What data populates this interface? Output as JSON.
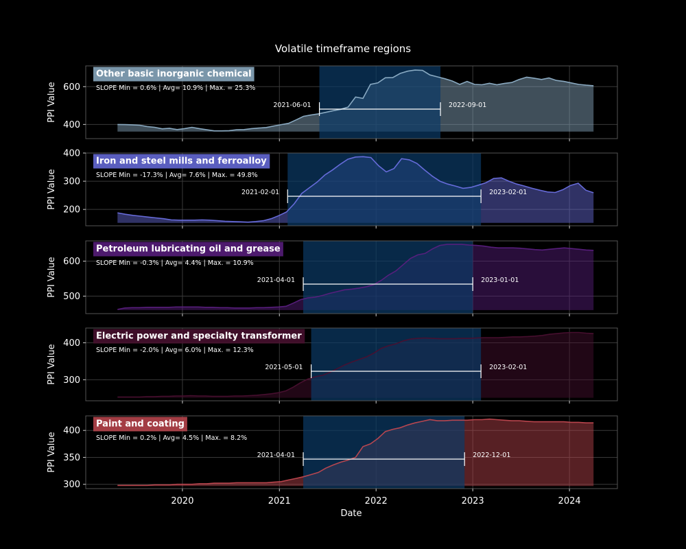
{
  "chart_data": {
    "type": "area",
    "title": "Volatile timeframe regions",
    "xlabel": "Date",
    "ylabel": "PPI Value",
    "x_ticks": [
      "2020",
      "2021",
      "2022",
      "2023",
      "2024"
    ],
    "x_range": [
      "2019-01-01",
      "2024-06-30"
    ],
    "grid": true,
    "colors": {
      "background": "#000000",
      "grid": "#3a3a3a",
      "frame": "#555555",
      "text": "#ffffff",
      "volatile_region": "#0b3a66"
    },
    "series": [
      {
        "name": "Other basic inorganic chemical",
        "stats": "SLOPE Min = 0.6% | Avg= 10.9% | Max. = 25.3%",
        "color": "#8fb0c8",
        "ylim": [
          325,
          710
        ],
        "yticks": [
          400,
          600
        ],
        "volatile_start": "2021-06-01",
        "volatile_end": "2022-09-01",
        "values": [
          400,
          399,
          398,
          396,
          389,
          385,
          377,
          380,
          373,
          378,
          385,
          378,
          372,
          366,
          366,
          367,
          372,
          373,
          378,
          381,
          384,
          392,
          399,
          406,
          424,
          443,
          450,
          456,
          464,
          473,
          480,
          492,
          545,
          538,
          612,
          620,
          647,
          648,
          670,
          682,
          688,
          686,
          662,
          652,
          642,
          630,
          612,
          628,
          612,
          610,
          618,
          610,
          617,
          622,
          638,
          650,
          645,
          638,
          646,
          633,
          628,
          620,
          612,
          608,
          605
        ]
      },
      {
        "name": "Iron and steel mills and ferroalloy",
        "stats": "SLOPE Min = -17.3% | Avg= 7.6% | Max. = 49.8%",
        "color": "#6a6fe0",
        "ylim": [
          142,
          400
        ],
        "yticks": [
          200,
          300,
          400
        ],
        "volatile_start": "2021-02-01",
        "volatile_end": "2023-02-01",
        "values": [
          188,
          183,
          179,
          176,
          173,
          170,
          167,
          163,
          162,
          162,
          162,
          163,
          162,
          160,
          158,
          157,
          156,
          155,
          157,
          160,
          167,
          178,
          191,
          220,
          257,
          277,
          297,
          322,
          340,
          360,
          378,
          386,
          387,
          384,
          355,
          333,
          345,
          380,
          376,
          363,
          340,
          318,
          300,
          290,
          283,
          275,
          278,
          286,
          295,
          310,
          312,
          300,
          290,
          283,
          275,
          268,
          262,
          260,
          270,
          285,
          293,
          268,
          259
        ]
      },
      {
        "name": "Petroleum lubricating oil and grease",
        "stats": "SLOPE Min = -0.3% | Avg= 4.4% | Max. = 10.9%",
        "color": "#5a1f80",
        "ylim": [
          450,
          658
        ],
        "yticks": [
          500,
          600
        ],
        "volatile_start": "2021-04-01",
        "volatile_end": "2023-01-01",
        "values": [
          462,
          466,
          467,
          467,
          468,
          468,
          468,
          468,
          469,
          469,
          469,
          469,
          468,
          468,
          467,
          467,
          466,
          466,
          466,
          467,
          467,
          468,
          469,
          471,
          480,
          490,
          495,
          497,
          502,
          508,
          513,
          518,
          520,
          523,
          527,
          533,
          545,
          560,
          572,
          590,
          608,
          618,
          622,
          635,
          645,
          648,
          648,
          648,
          646,
          645,
          643,
          640,
          638,
          638,
          638,
          637,
          635,
          633,
          632,
          634,
          636,
          638,
          636,
          634,
          632,
          631
        ]
      },
      {
        "name": "Electric power and specialty transformer",
        "stats": "SLOPE Min = -2.0% | Avg= 6.0% | Max. = 12.3%",
        "color": "#4a1030",
        "ylim": [
          243,
          440
        ],
        "yticks": [
          300,
          400
        ],
        "volatile_start": "2021-05-01",
        "volatile_end": "2023-02-01",
        "values": [
          253,
          253,
          253,
          253,
          254,
          254,
          255,
          255,
          256,
          256,
          257,
          256,
          256,
          255,
          255,
          255,
          256,
          256,
          257,
          258,
          260,
          262,
          265,
          270,
          280,
          292,
          302,
          308,
          312,
          320,
          330,
          340,
          348,
          355,
          362,
          372,
          385,
          392,
          397,
          405,
          410,
          412,
          413,
          412,
          411,
          411,
          411,
          412,
          412,
          413,
          414,
          414,
          414,
          415,
          416,
          416,
          417,
          418,
          420,
          423,
          425,
          427,
          428,
          428,
          426,
          425
        ]
      },
      {
        "name": "Paint and coating",
        "stats": "SLOPE Min = 0.2% | Avg= 4.5% | Max. = 8.2%",
        "color": "#c04850",
        "ylim": [
          292,
          427
        ],
        "yticks": [
          300,
          350,
          400
        ],
        "volatile_start": "2021-04-01",
        "volatile_end": "2022-12-01",
        "values": [
          298,
          298,
          298,
          298,
          298,
          299,
          299,
          299,
          300,
          300,
          300,
          301,
          301,
          302,
          302,
          302,
          303,
          303,
          303,
          303,
          303,
          304,
          305,
          308,
          311,
          314,
          318,
          322,
          330,
          336,
          341,
          345,
          350,
          370,
          375,
          385,
          398,
          402,
          405,
          410,
          414,
          417,
          420,
          418,
          418,
          419,
          419,
          419,
          420,
          420,
          421,
          420,
          419,
          418,
          418,
          417,
          416,
          416,
          416,
          416,
          416,
          415,
          415,
          414,
          414
        ]
      }
    ]
  }
}
